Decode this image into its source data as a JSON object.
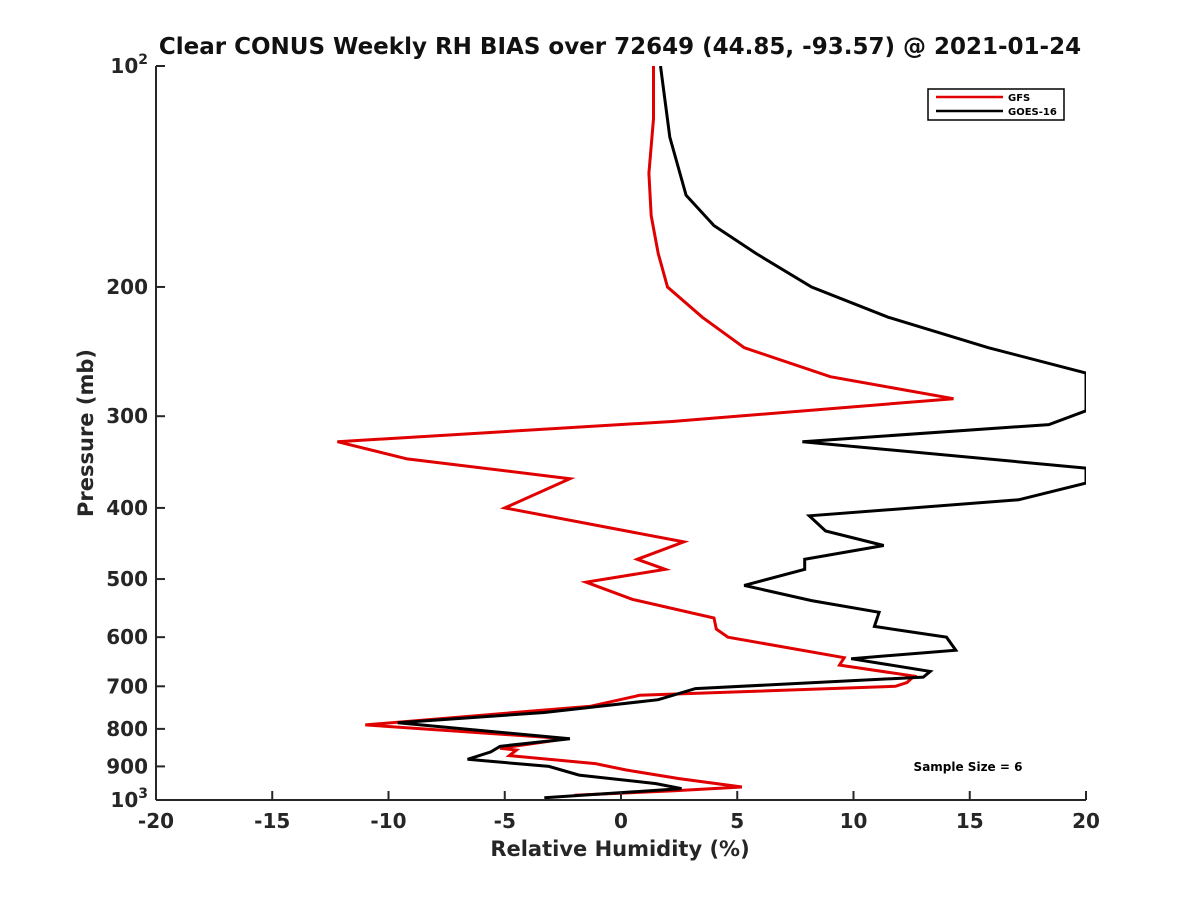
{
  "chart_data": {
    "type": "line",
    "title": "Clear CONUS Weekly RH BIAS over 72649 (44.85, -93.57) @ 2021-01-24",
    "xlabel": "Relative Humidity (%)",
    "ylabel": "Pressure (mb)",
    "xlim": [
      -20,
      20
    ],
    "ylim": [
      100,
      1000
    ],
    "yscale": "log",
    "y_reversed": true,
    "x_ticks": [
      -20,
      -15,
      -10,
      -5,
      0,
      5,
      10,
      15,
      20
    ],
    "x_tick_labels": [
      "-20",
      "-15",
      "-10",
      "-5",
      "0",
      "5",
      "10",
      "15",
      "20"
    ],
    "y_ticks": [
      100,
      200,
      300,
      400,
      500,
      600,
      700,
      800,
      900,
      1000
    ],
    "y_tick_labels": [
      {
        "base": "10",
        "exp": "2"
      },
      {
        "base": "200",
        "exp": ""
      },
      {
        "base": "300",
        "exp": ""
      },
      {
        "base": "400",
        "exp": ""
      },
      {
        "base": "500",
        "exp": ""
      },
      {
        "base": "600",
        "exp": ""
      },
      {
        "base": "700",
        "exp": ""
      },
      {
        "base": "800",
        "exp": ""
      },
      {
        "base": "900",
        "exp": ""
      },
      {
        "base": "10",
        "exp": "3"
      }
    ],
    "grid": false,
    "legend_position": "top-right",
    "series": [
      {
        "name": "GFS",
        "color": "#e00000",
        "points": [
          [
            1.4,
            100
          ],
          [
            1.4,
            118
          ],
          [
            1.2,
            140
          ],
          [
            1.3,
            160
          ],
          [
            1.6,
            180
          ],
          [
            2.0,
            200
          ],
          [
            3.5,
            220
          ],
          [
            5.3,
            242
          ],
          [
            9.0,
            265
          ],
          [
            14.3,
            284
          ],
          [
            2.2,
            305
          ],
          [
            -12.2,
            325
          ],
          [
            -9.2,
            343
          ],
          [
            -2.2,
            365
          ],
          [
            -5.0,
            400
          ],
          [
            2.7,
            445
          ],
          [
            0.7,
            470
          ],
          [
            1.9,
            485
          ],
          [
            -1.5,
            505
          ],
          [
            0.5,
            533
          ],
          [
            4.0,
            565
          ],
          [
            4.1,
            585
          ],
          [
            4.6,
            600
          ],
          [
            9.6,
            640
          ],
          [
            9.4,
            655
          ],
          [
            12.6,
            678
          ],
          [
            12.3,
            692
          ],
          [
            11.8,
            700
          ],
          [
            0.8,
            720
          ],
          [
            -1.3,
            745
          ],
          [
            -11.0,
            790
          ],
          [
            -2.3,
            825
          ],
          [
            -5.2,
            850
          ],
          [
            -4.5,
            855
          ],
          [
            -4.8,
            870
          ],
          [
            -1.1,
            892
          ],
          [
            0.2,
            910
          ],
          [
            2.5,
            935
          ],
          [
            5.2,
            960
          ],
          [
            2.2,
            972
          ],
          [
            -2.0,
            985
          ]
        ]
      },
      {
        "name": "GOES-16",
        "color": "#000000",
        "points": [
          [
            1.7,
            100
          ],
          [
            2.1,
            125
          ],
          [
            2.8,
            150
          ],
          [
            4.0,
            165
          ],
          [
            5.8,
            180
          ],
          [
            8.2,
            200
          ],
          [
            11.5,
            220
          ],
          [
            15.8,
            242
          ],
          [
            20.0,
            262
          ],
          [
            20.0,
            295
          ],
          [
            18.4,
            308
          ],
          [
            7.8,
            325
          ],
          [
            20.0,
            353
          ],
          [
            20.0,
            370
          ],
          [
            17.1,
            390
          ],
          [
            8.1,
            410
          ],
          [
            8.8,
            430
          ],
          [
            11.3,
            450
          ],
          [
            7.9,
            470
          ],
          [
            7.9,
            485
          ],
          [
            5.3,
            510
          ],
          [
            8.2,
            535
          ],
          [
            11.1,
            555
          ],
          [
            10.9,
            580
          ],
          [
            14.0,
            600
          ],
          [
            14.4,
            625
          ],
          [
            9.9,
            642
          ],
          [
            13.3,
            668
          ],
          [
            13.0,
            680
          ],
          [
            3.2,
            705
          ],
          [
            1.6,
            730
          ],
          [
            -3.3,
            760
          ],
          [
            -9.6,
            785
          ],
          [
            -2.2,
            825
          ],
          [
            -5.2,
            845
          ],
          [
            -5.6,
            860
          ],
          [
            -6.6,
            880
          ],
          [
            -3.1,
            900
          ],
          [
            -1.8,
            925
          ],
          [
            1.5,
            950
          ],
          [
            2.6,
            965
          ],
          [
            -3.3,
            993
          ]
        ]
      }
    ],
    "annotations": [
      "Sample Size = 6"
    ]
  }
}
